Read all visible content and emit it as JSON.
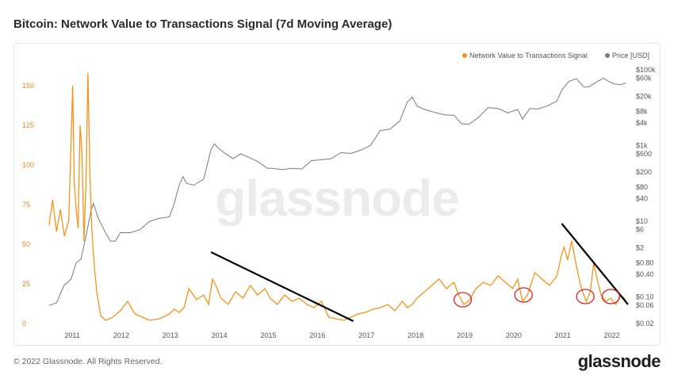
{
  "header": {
    "title": "Bitcoin: Network Value to Transactions Signal (7d Moving Average)"
  },
  "footer": {
    "copyright": "© 2022 Glassnode. All Rights Reserved.",
    "brand": "glassnode"
  },
  "watermark": "glassnode",
  "colors": {
    "nvts": "#f7931a",
    "price": "#7a7a7a",
    "trend": "#000000",
    "marker": "#e02020"
  },
  "chart_data": {
    "type": "line",
    "legend_placement": "top-right",
    "grid": false,
    "legend": [
      {
        "name": "Network Value to Transactions Signal",
        "color": "#f7931a"
      },
      {
        "name": "Price [USD]",
        "color": "#7a7a7a"
      }
    ],
    "x_ticks": [
      "2011",
      "2012",
      "2013",
      "2014",
      "2015",
      "2016",
      "2017",
      "2018",
      "2019",
      "2020",
      "2021",
      "2022"
    ],
    "y_left_ticks": [
      "0",
      "25",
      "50",
      "75",
      "100",
      "125",
      "150"
    ],
    "y_left_range": [
      0,
      160
    ],
    "y_right_ticks": [
      {
        "label": "$100k",
        "v": 100000
      },
      {
        "label": "$60k",
        "v": 60000
      },
      {
        "label": "$20k",
        "v": 20000
      },
      {
        "label": "$8k",
        "v": 8000
      },
      {
        "label": "$4k",
        "v": 4000
      },
      {
        "label": "$1k",
        "v": 1000
      },
      {
        "label": "$600",
        "v": 600
      },
      {
        "label": "$200",
        "v": 200
      },
      {
        "label": "$80",
        "v": 80
      },
      {
        "label": "$40",
        "v": 40
      },
      {
        "label": "$10",
        "v": 10
      },
      {
        "label": "$6",
        "v": 6
      },
      {
        "label": "$2",
        "v": 2
      },
      {
        "label": "$0.80",
        "v": 0.8
      },
      {
        "label": "$0.40",
        "v": 0.4
      },
      {
        "label": "$0.10",
        "v": 0.1
      },
      {
        "label": "$0.06",
        "v": 0.06
      },
      {
        "label": "$0.02",
        "v": 0.02
      }
    ],
    "x_range": [
      2010.55,
      2022.35
    ],
    "y_right_range": [
      0.02,
      100000
    ],
    "series": [
      {
        "name": "Network Value to Transactions Signal",
        "x": [
          2010.55,
          2010.62,
          2010.7,
          2010.78,
          2010.86,
          2010.95,
          2011.0,
          2011.03,
          2011.06,
          2011.1,
          2011.14,
          2011.18,
          2011.22,
          2011.26,
          2011.3,
          2011.34,
          2011.38,
          2011.42,
          2011.46,
          2011.52,
          2011.6,
          2011.7,
          2011.85,
          2012.0,
          2012.15,
          2012.3,
          2012.45,
          2012.6,
          2012.8,
          2013.0,
          2013.1,
          2013.2,
          2013.3,
          2013.4,
          2013.55,
          2013.7,
          2013.8,
          2013.88,
          2013.95,
          2014.05,
          2014.2,
          2014.35,
          2014.5,
          2014.65,
          2014.8,
          2014.95,
          2015.05,
          2015.2,
          2015.35,
          2015.5,
          2015.65,
          2015.8,
          2015.95,
          2016.1,
          2016.25,
          2016.4,
          2016.55,
          2016.7,
          2016.85,
          2017.0,
          2017.15,
          2017.3,
          2017.45,
          2017.6,
          2017.75,
          2017.85,
          2017.95,
          2018.05,
          2018.2,
          2018.35,
          2018.5,
          2018.65,
          2018.8,
          2018.9,
          2019.0,
          2019.1,
          2019.25,
          2019.4,
          2019.55,
          2019.7,
          2019.85,
          2020.0,
          2020.1,
          2020.2,
          2020.3,
          2020.45,
          2020.6,
          2020.75,
          2020.9,
          2021.0,
          2021.05,
          2021.12,
          2021.2,
          2021.3,
          2021.4,
          2021.5,
          2021.58,
          2021.65,
          2021.72,
          2021.8,
          2021.9,
          2022.0,
          2022.1,
          2022.2,
          2022.3
        ],
        "values": [
          62,
          78,
          58,
          72,
          55,
          65,
          118,
          150,
          90,
          72,
          60,
          125,
          108,
          52,
          88,
          158,
          95,
          60,
          40,
          20,
          5,
          2,
          4,
          8,
          14,
          6,
          4,
          2,
          3,
          6,
          9,
          7,
          10,
          22,
          15,
          18,
          12,
          28,
          24,
          16,
          12,
          20,
          16,
          24,
          18,
          22,
          16,
          12,
          18,
          14,
          16,
          12,
          10,
          14,
          4,
          3,
          2,
          4,
          6,
          7,
          9,
          10,
          12,
          8,
          14,
          10,
          12,
          16,
          20,
          24,
          28,
          22,
          26,
          18,
          12,
          14,
          22,
          26,
          24,
          30,
          26,
          22,
          28,
          14,
          18,
          32,
          28,
          24,
          30,
          44,
          48,
          40,
          52,
          36,
          22,
          14,
          20,
          38,
          28,
          18,
          14,
          16,
          12,
          18,
          15
        ]
      },
      {
        "name": "Price [USD]",
        "x": [
          2010.55,
          2010.7,
          2010.85,
          2011.0,
          2011.1,
          2011.2,
          2011.3,
          2011.4,
          2011.45,
          2011.55,
          2011.7,
          2011.8,
          2011.9,
          2012.0,
          2012.2,
          2012.4,
          2012.6,
          2012.8,
          2013.0,
          2013.1,
          2013.2,
          2013.28,
          2013.35,
          2013.5,
          2013.7,
          2013.85,
          2013.92,
          2014.0,
          2014.15,
          2014.3,
          2014.45,
          2014.6,
          2014.8,
          2015.0,
          2015.1,
          2015.3,
          2015.5,
          2015.7,
          2015.9,
          2016.1,
          2016.3,
          2016.5,
          2016.7,
          2016.9,
          2017.1,
          2017.3,
          2017.5,
          2017.7,
          2017.85,
          2017.95,
          2018.05,
          2018.2,
          2018.4,
          2018.6,
          2018.8,
          2018.95,
          2019.1,
          2019.3,
          2019.5,
          2019.7,
          2019.9,
          2020.1,
          2020.2,
          2020.35,
          2020.5,
          2020.7,
          2020.9,
          2021.0,
          2021.15,
          2021.3,
          2021.45,
          2021.55,
          2021.7,
          2021.85,
          2021.95,
          2022.05,
          2022.2,
          2022.3
        ],
        "values": [
          0.06,
          0.07,
          0.2,
          0.3,
          0.8,
          1.0,
          4,
          18,
          30,
          12,
          5,
          3,
          3,
          5,
          5,
          6,
          10,
          12,
          13,
          30,
          90,
          150,
          100,
          90,
          130,
          800,
          1100,
          850,
          600,
          450,
          600,
          500,
          380,
          250,
          250,
          230,
          250,
          240,
          400,
          420,
          450,
          650,
          620,
          750,
          1000,
          2500,
          2700,
          4500,
          14000,
          19000,
          11000,
          9000,
          7500,
          6500,
          6300,
          3800,
          3600,
          5500,
          10000,
          9500,
          7300,
          9000,
          5000,
          9500,
          9200,
          11000,
          15000,
          29000,
          50000,
          58000,
          35000,
          35000,
          47000,
          60000,
          50000,
          43000,
          40000,
          45000
        ]
      }
    ],
    "trend_lines": [
      {
        "from": [
          2013.85,
          45
        ],
        "to": [
          2016.75,
          1.5
        ]
      },
      {
        "from": [
          2021.0,
          63
        ],
        "to": [
          2022.35,
          12
        ]
      }
    ],
    "highlight_circles": [
      {
        "x": 2018.98,
        "y": 15
      },
      {
        "x": 2020.22,
        "y": 18
      },
      {
        "x": 2021.48,
        "y": 17
      },
      {
        "x": 2022.0,
        "y": 17
      }
    ]
  }
}
